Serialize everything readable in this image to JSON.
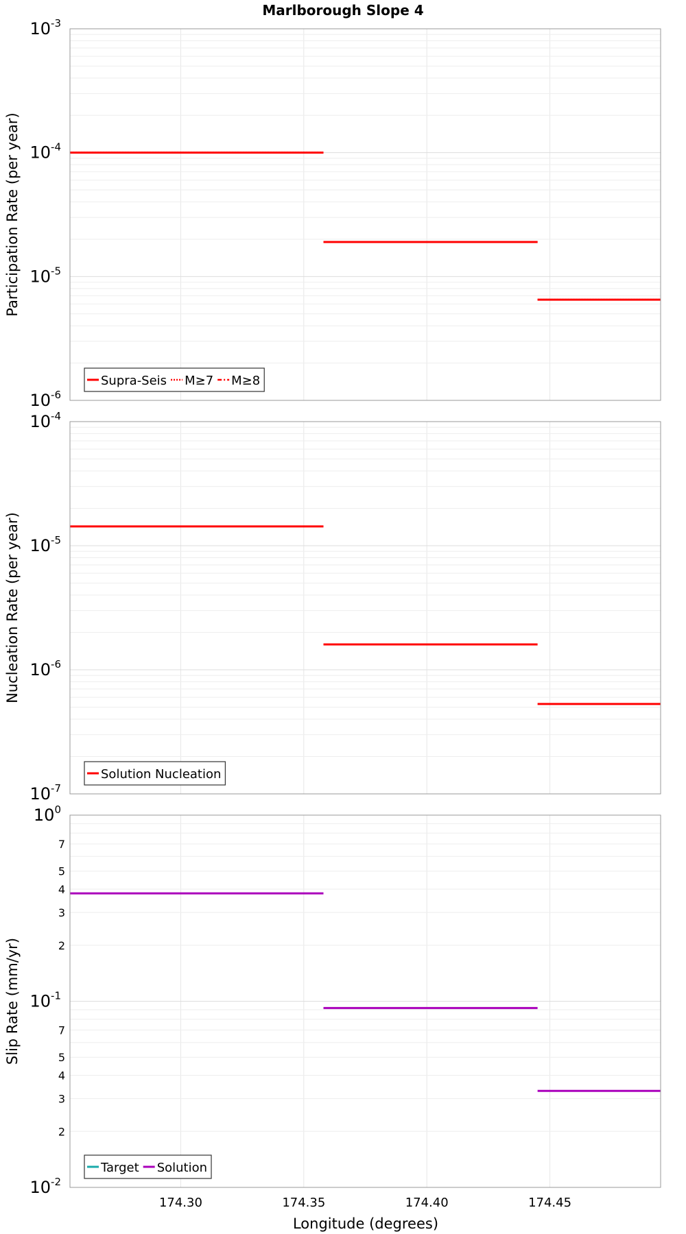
{
  "title": "Marlborough Slope 4",
  "chart_data": [
    {
      "type": "line",
      "ylabel": "Participation Rate (per year)",
      "yscale": "log",
      "ylim_exp": [
        -6,
        -3
      ],
      "ytick_labels": [
        {
          "exp": -3,
          "base": "10",
          "sup": "-3"
        },
        {
          "exp": -4,
          "base": "10",
          "sup": "-4"
        },
        {
          "exp": -5,
          "base": "10",
          "sup": "-5"
        },
        {
          "exp": -6,
          "base": "10",
          "sup": "-6"
        }
      ],
      "series": [
        {
          "name": "Supra-Seis",
          "color": "#ff0000",
          "style": "solid",
          "segments": [
            {
              "x0": 174.255,
              "x1": 174.358,
              "y": 0.0001
            },
            {
              "x0": 174.358,
              "x1": 174.445,
              "y": 1.9e-05
            },
            {
              "x0": 174.445,
              "x1": 174.495,
              "y": 6.5e-06
            }
          ]
        },
        {
          "name": "M≥7",
          "color": "#ff0000",
          "style": "dotted",
          "segments": [
            {
              "x0": 174.255,
              "x1": 174.358,
              "y": 0.0001
            },
            {
              "x0": 174.358,
              "x1": 174.445,
              "y": 1.9e-05
            },
            {
              "x0": 174.445,
              "x1": 174.495,
              "y": 6.5e-06
            }
          ]
        },
        {
          "name": "M≥8",
          "color": "#ff0000",
          "style": "dashdot",
          "segments": []
        }
      ],
      "legend": [
        "Supra-Seis",
        "M≥7",
        "M≥8"
      ],
      "legend_position": "bottom-left"
    },
    {
      "type": "line",
      "ylabel": "Nucleation Rate (per year)",
      "yscale": "log",
      "ylim_exp": [
        -7,
        -4
      ],
      "ytick_labels": [
        {
          "exp": -4,
          "base": "10",
          "sup": "-4"
        },
        {
          "exp": -5,
          "base": "10",
          "sup": "-5"
        },
        {
          "exp": -6,
          "base": "10",
          "sup": "-6"
        },
        {
          "exp": -7,
          "base": "10",
          "sup": "-7"
        }
      ],
      "series": [
        {
          "name": "Solution Nucleation",
          "color": "#ff0000",
          "style": "solid",
          "segments": [
            {
              "x0": 174.255,
              "x1": 174.358,
              "y": 1.43e-05
            },
            {
              "x0": 174.358,
              "x1": 174.445,
              "y": 1.6e-06
            },
            {
              "x0": 174.445,
              "x1": 174.495,
              "y": 5.3e-07
            }
          ]
        }
      ],
      "legend": [
        "Solution Nucleation"
      ],
      "legend_position": "bottom-left"
    },
    {
      "type": "line",
      "ylabel": "Slip Rate (mm/yr)",
      "yscale": "log",
      "ylim_exp": [
        -2,
        0
      ],
      "ytick_labels": [
        {
          "exp": 0,
          "base": "10",
          "sup": "0"
        },
        {
          "exp": -1,
          "base": "10",
          "sup": "-1"
        },
        {
          "exp": -2,
          "base": "10",
          "sup": "-2"
        }
      ],
      "minor_tick_labels": [
        {
          "value": 0.7,
          "label": "7"
        },
        {
          "value": 0.5,
          "label": "5"
        },
        {
          "value": 0.4,
          "label": "4"
        },
        {
          "value": 0.3,
          "label": "3"
        },
        {
          "value": 0.2,
          "label": "2"
        },
        {
          "value": 0.07,
          "label": "7"
        },
        {
          "value": 0.05,
          "label": "5"
        },
        {
          "value": 0.04,
          "label": "4"
        },
        {
          "value": 0.03,
          "label": "3"
        },
        {
          "value": 0.02,
          "label": "2"
        }
      ],
      "series": [
        {
          "name": "Target",
          "color": "#1aaaaa",
          "style": "solid",
          "segments": []
        },
        {
          "name": "Solution",
          "color": "#aa00bb",
          "style": "solid",
          "segments": [
            {
              "x0": 174.255,
              "x1": 174.358,
              "y": 0.38
            },
            {
              "x0": 174.358,
              "x1": 174.445,
              "y": 0.092
            },
            {
              "x0": 174.445,
              "x1": 174.495,
              "y": 0.033
            }
          ]
        }
      ],
      "legend": [
        "Target",
        "Solution"
      ],
      "legend_position": "bottom-left"
    }
  ],
  "x_axis": {
    "label": "Longitude (degrees)",
    "range": [
      174.255,
      174.495
    ],
    "ticks": [
      174.3,
      174.35,
      174.4,
      174.45
    ],
    "tick_labels": [
      "174.30",
      "174.35",
      "174.40",
      "174.45"
    ]
  }
}
